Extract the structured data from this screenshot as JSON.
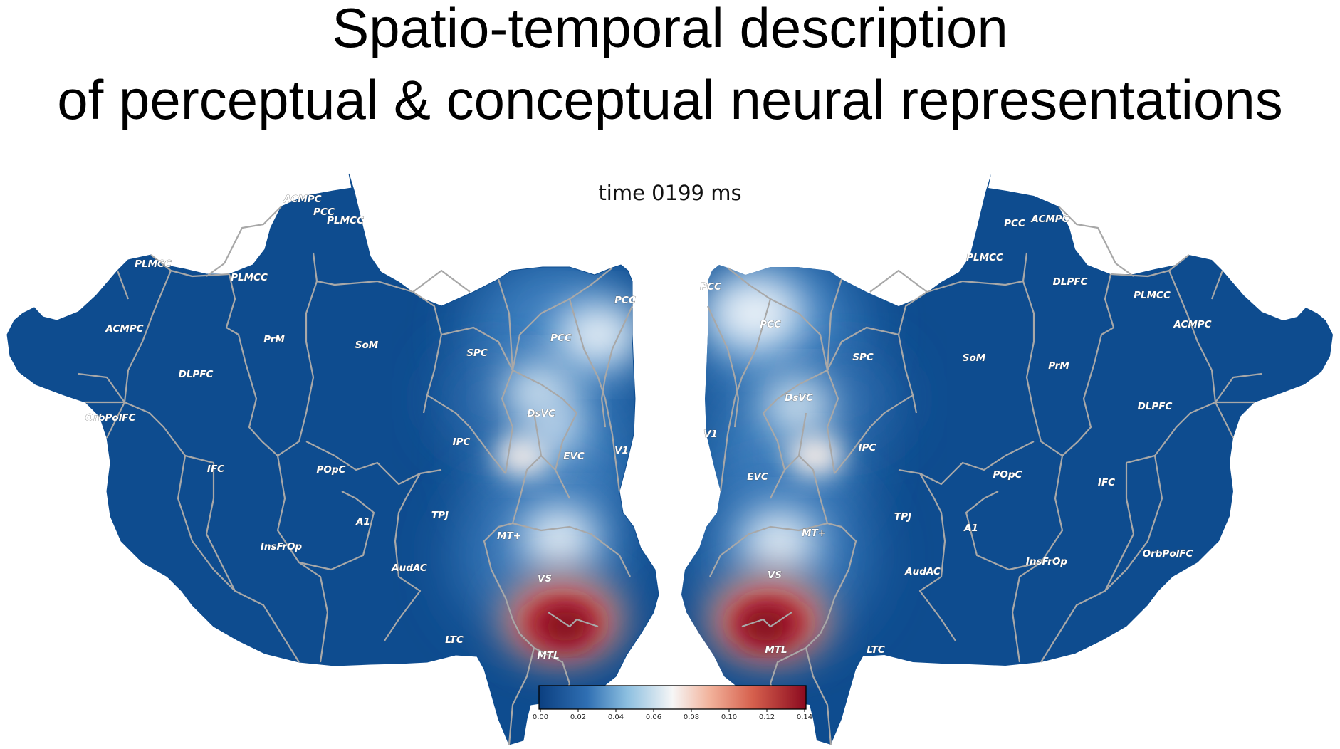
{
  "title": {
    "line1": "Spatio-temporal description",
    "line2": "of perceptual & conceptual neural representations"
  },
  "time_label": "time 0199 ms",
  "left_hemisphere": {
    "roi_labels": [
      "ACMPC",
      "PCC",
      "PLMCC",
      "PLMCC",
      "PLMCC",
      "ACMPC",
      "PrM",
      "SoM",
      "DLPFC",
      "OrbPolFC",
      "SPC",
      "PCC",
      "PCC",
      "DsVC",
      "IPC",
      "EVC",
      "V1",
      "IFC",
      "POpC",
      "TPJ",
      "A1",
      "MT+",
      "InsFrOp",
      "AudAC",
      "VS",
      "LTC",
      "MTL"
    ]
  },
  "right_hemisphere": {
    "roi_labels": [
      "PCC",
      "ACMPC",
      "PCC",
      "PLMCC",
      "DLPFC",
      "PCC",
      "PLMCC",
      "ACMPC",
      "SPC",
      "SoM",
      "PrM",
      "DsVC",
      "DLPFC",
      "V1",
      "IPC",
      "EVC",
      "POpC",
      "IFC",
      "TPJ",
      "A1",
      "MT+",
      "OrbPolFC",
      "InsFrOp",
      "AudAC",
      "VS",
      "LTC",
      "MTL"
    ]
  },
  "colorbar": {
    "ticks": [
      "0.00",
      "0.02",
      "0.04",
      "0.06",
      "0.08",
      "0.10",
      "0.12",
      "0.14"
    ],
    "colors": [
      "#0b3f80",
      "#2f6fb3",
      "#8cbfe0",
      "#f6f6f6",
      "#f2b29b",
      "#d6604d",
      "#8b0a1f"
    ]
  },
  "colors": {
    "cortex": "#0e4c8f",
    "border": "#a8a8a8",
    "hot": "#b2182b",
    "light": "#e9f1f8"
  }
}
